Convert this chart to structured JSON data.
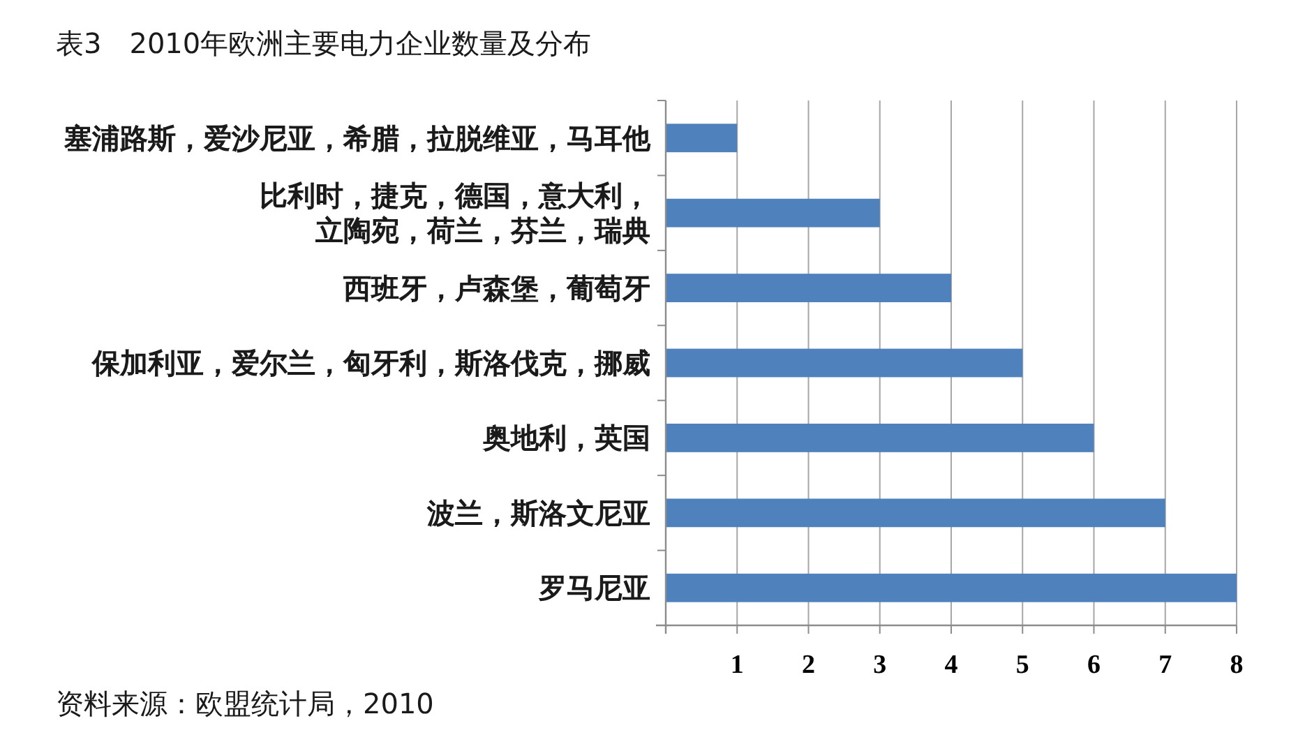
{
  "chart_data": {
    "type": "bar",
    "orientation": "horizontal",
    "title": "表3　2010年欧洲主要电力企业数量及分布",
    "categories": [
      "塞浦路斯，爱沙尼亚，希腊，拉脱维亚，马耳他",
      "比利时，捷克，德国，意大利，立陶宛，荷兰，芬兰，瑞典",
      "西班牙，卢森堡，葡萄牙",
      "保加利亚，爱尔兰，匈牙利，斯洛伐克，挪威",
      "奥地利，英国",
      "波兰，斯洛文尼亚",
      "罗马尼亚"
    ],
    "values": [
      1,
      3,
      4,
      5,
      6,
      7,
      8
    ],
    "color": "#4f81bd",
    "xlim": [
      0,
      8
    ],
    "xticks": [
      {
        "value": 0,
        "label": null
      },
      1,
      2,
      3,
      4,
      5,
      6,
      7,
      8
    ],
    "grid": "x",
    "annotations": [
      "资料来源：欧盟统计局，2010"
    ]
  }
}
